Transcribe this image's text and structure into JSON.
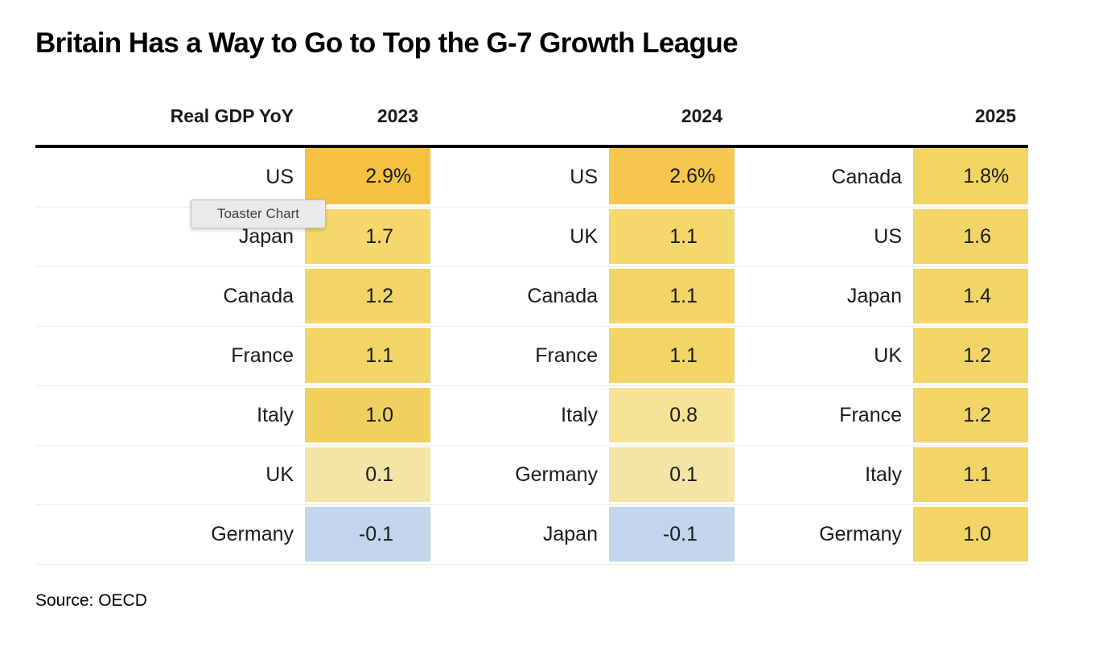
{
  "title": "Britain Has a Way to Go to Top the G-7 Growth League",
  "tooltip_text": "Toaster Chart",
  "source_text": "Source: OECD",
  "header": {
    "metric_label": "Real GDP YoY",
    "years": [
      "2023",
      "2024",
      "2025"
    ]
  },
  "colors": {
    "header_rule": "#000000",
    "row_separator": "#ececec",
    "high_value_cell": "#F5C242",
    "mid_value_cell": "#F2D566",
    "low_value_cell": "#F4E4A5",
    "negative_value_cell": "#C2D5EC",
    "tooltip_bg": "#eaeaea",
    "tooltip_border": "#bdbdbd"
  },
  "chart_data": {
    "type": "table",
    "title": "Britain Has a Way to Go to Top the G-7 Growth League",
    "metric": "Real GDP YoY",
    "unit": "percent",
    "source": "OECD",
    "legend_position": "none",
    "grid": "row-separators",
    "columns": [
      {
        "year": "2023",
        "rows": [
          {
            "country": "US",
            "value": 2.9,
            "suffix": "%",
            "color": "#F5C242"
          },
          {
            "country": "Japan",
            "value": 1.7,
            "suffix": "",
            "color": "#F4D86C"
          },
          {
            "country": "Canada",
            "value": 1.2,
            "suffix": "",
            "color": "#F2D566"
          },
          {
            "country": "France",
            "value": 1.1,
            "suffix": "",
            "color": "#F2D566"
          },
          {
            "country": "Italy",
            "value": 1.0,
            "suffix": "",
            "color": "#F0D160"
          },
          {
            "country": "UK",
            "value": 0.1,
            "suffix": "",
            "color": "#F4E4A5"
          },
          {
            "country": "Germany",
            "value": -0.1,
            "suffix": "",
            "color": "#C2D5EC"
          }
        ]
      },
      {
        "year": "2024",
        "rows": [
          {
            "country": "US",
            "value": 2.6,
            "suffix": "%",
            "color": "#F6C64E"
          },
          {
            "country": "UK",
            "value": 1.1,
            "suffix": "",
            "color": "#F4D86C"
          },
          {
            "country": "Canada",
            "value": 1.1,
            "suffix": "",
            "color": "#F2D566"
          },
          {
            "country": "France",
            "value": 1.1,
            "suffix": "",
            "color": "#F2D566"
          },
          {
            "country": "Italy",
            "value": 0.8,
            "suffix": "",
            "color": "#F5E295"
          },
          {
            "country": "Germany",
            "value": 0.1,
            "suffix": "",
            "color": "#F4E4A5"
          },
          {
            "country": "Japan",
            "value": -0.1,
            "suffix": "",
            "color": "#C2D5EC"
          }
        ]
      },
      {
        "year": "2025",
        "rows": [
          {
            "country": "Canada",
            "value": 1.8,
            "suffix": "%",
            "color": "#F2D462"
          },
          {
            "country": "US",
            "value": 1.6,
            "suffix": "",
            "color": "#F2D566"
          },
          {
            "country": "Japan",
            "value": 1.4,
            "suffix": "",
            "color": "#F2D566"
          },
          {
            "country": "UK",
            "value": 1.2,
            "suffix": "",
            "color": "#F2D566"
          },
          {
            "country": "France",
            "value": 1.2,
            "suffix": "",
            "color": "#F2D566"
          },
          {
            "country": "Italy",
            "value": 1.1,
            "suffix": "",
            "color": "#F2D566"
          },
          {
            "country": "Germany",
            "value": 1.0,
            "suffix": "",
            "color": "#F2D566"
          }
        ]
      }
    ]
  }
}
